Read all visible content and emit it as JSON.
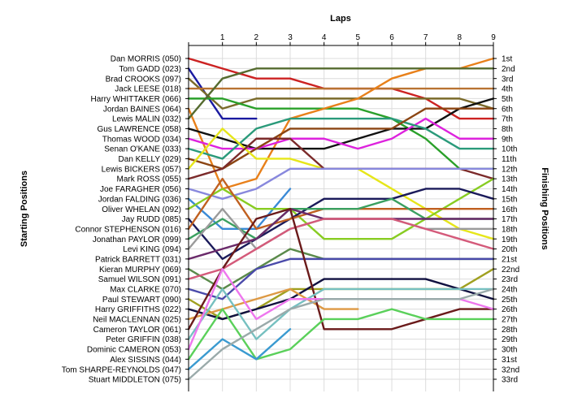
{
  "chart_data": {
    "type": "line",
    "title": "",
    "top_axis_label": "Laps",
    "left_axis_label": "Starting Positions",
    "right_axis_label": "Finishing Positions",
    "x": [
      0,
      1,
      2,
      3,
      4,
      5,
      6,
      7,
      8,
      9
    ],
    "x_tick_labels": [
      "1",
      "2",
      "3",
      "4",
      "5",
      "6",
      "7",
      "8",
      "9"
    ],
    "y_range": [
      1,
      33
    ],
    "y_inverted": true,
    "grid": true,
    "starting_labels": [
      "Dan MORRIS (050)",
      "Tom GADD (023)",
      "Brad CROOKS (097)",
      "Jack LEESE (018)",
      "Harry WHITTAKER (066)",
      "Jordan BAINES (064)",
      "Lewis MALIN (032)",
      "Gus LAWRENCE (058)",
      "Thomas WOOD (034)",
      "Senan O'KANE (033)",
      "Dan KELLY (029)",
      "Lewis BICKERS (057)",
      "Mark ROSS (055)",
      "Joe FARAGHER (056)",
      "Jordan FALDING (036)",
      "Oliver WHELAN (092)",
      "Jay RUDD (085)",
      "Connor STEPHENSON (016)",
      "Jonathan PAYLOR (099)",
      "Levi KING (094)",
      "Patrick BARRETT (031)",
      "Kieran MURPHY (069)",
      "Samuel WILSON (091)",
      "Max CLARKE (070)",
      "Paul STEWART (090)",
      "Harry GRIFFITHS (022)",
      "Neil MACLENNAN (025)",
      "Cameron TAYLOR (061)",
      "Peter GRIFFIN (038)",
      "Dominic CAMERON (053)",
      "Alex SISSINS (044)",
      "Tom SHARPE-REYNOLDS (047)",
      "Stuart MIDDLETON (075)"
    ],
    "finishing_labels": [
      "1st",
      "2nd",
      "3rd",
      "4th",
      "5th",
      "6th",
      "7th",
      "8th",
      "9th",
      "10th",
      "11th",
      "12th",
      "13th",
      "14th",
      "15th",
      "16th",
      "17th",
      "18th",
      "19th",
      "20th",
      "21st",
      "22nd",
      "23rd",
      "24th",
      "25th",
      "26th",
      "27th",
      "28th",
      "29th",
      "30th",
      "31st",
      "32nd",
      "33rd"
    ],
    "series": [
      {
        "color": "#cc2222",
        "values": [
          1,
          2,
          3,
          3,
          4,
          4,
          4,
          5,
          7,
          7
        ]
      },
      {
        "color": "#1a1aa0",
        "values": [
          2,
          7,
          7,
          null,
          null,
          null,
          null,
          null,
          null,
          null
        ]
      },
      {
        "color": "#7a6a2a",
        "values": [
          3,
          6,
          5,
          5,
          5,
          5,
          5,
          5,
          5,
          6
        ]
      },
      {
        "color": "#b87333",
        "values": [
          4,
          4,
          4,
          4,
          4,
          4,
          4,
          4,
          4,
          4
        ]
      },
      {
        "color": "#2aa02a",
        "values": [
          5,
          5,
          6,
          6,
          6,
          6,
          7,
          9,
          12,
          12
        ]
      },
      {
        "color": "#e8801a",
        "values": [
          6,
          14,
          13,
          7,
          6,
          5,
          3,
          2,
          2,
          1
        ]
      },
      {
        "color": "#556b2f",
        "values": [
          7,
          3,
          2,
          2,
          2,
          2,
          2,
          2,
          2,
          2
        ]
      },
      {
        "color": "#111111",
        "values": [
          8,
          9,
          10,
          10,
          10,
          9,
          8,
          8,
          6,
          5
        ]
      },
      {
        "color": "#dd22dd",
        "values": [
          9,
          10,
          10,
          9,
          9,
          10,
          9,
          7,
          9,
          9
        ]
      },
      {
        "color": "#2a9a7a",
        "values": [
          10,
          11,
          8,
          7,
          7,
          7,
          7,
          8,
          10,
          10
        ]
      },
      {
        "color": "#8b4513",
        "values": [
          11,
          12,
          10,
          8,
          8,
          8,
          8,
          6,
          6,
          6
        ]
      },
      {
        "color": "#e6e61a",
        "values": [
          12,
          8,
          11,
          11,
          12,
          12,
          14,
          16,
          18,
          19
        ]
      },
      {
        "color": "#7b2a2a",
        "values": [
          13,
          12,
          9,
          9,
          12,
          12,
          12,
          12,
          12,
          13
        ]
      },
      {
        "color": "#8888dd",
        "values": [
          14,
          15,
          14,
          12,
          12,
          12,
          12,
          12,
          12,
          12
        ]
      },
      {
        "color": "#3a8ad6",
        "values": [
          15,
          18,
          18,
          14,
          null,
          null,
          null,
          null,
          null,
          null
        ]
      },
      {
        "color": "#88cc22",
        "values": [
          16,
          14,
          16,
          16,
          19,
          19,
          19,
          17,
          15,
          13
        ]
      },
      {
        "color": "#1a1a5a",
        "values": [
          17,
          21,
          19,
          17,
          15,
          15,
          15,
          14,
          14,
          15
        ]
      },
      {
        "color": "#c06020",
        "values": [
          18,
          13,
          18,
          17,
          16,
          16,
          16,
          16,
          16,
          16
        ]
      },
      {
        "color": "#3aa060",
        "values": [
          19,
          17,
          19,
          16,
          16,
          16,
          15,
          17,
          17,
          17
        ]
      },
      {
        "color": "#9a9a9a",
        "values": [
          20,
          16,
          20,
          18,
          17,
          17,
          17,
          18,
          18,
          18
        ]
      },
      {
        "color": "#6a2a6a",
        "values": [
          21,
          20,
          19,
          16,
          17,
          17,
          17,
          17,
          17,
          17
        ]
      },
      {
        "color": "#5a8a4a",
        "values": [
          22,
          24,
          22,
          20,
          21,
          21,
          21,
          21,
          21,
          21
        ]
      },
      {
        "color": "#d45a7a",
        "values": [
          23,
          22,
          20,
          18,
          17,
          17,
          17,
          18,
          19,
          20
        ]
      },
      {
        "color": "#4a4aaa",
        "values": [
          24,
          25,
          22,
          21,
          21,
          21,
          21,
          21,
          21,
          21
        ]
      },
      {
        "color": "#a0a020",
        "values": [
          25,
          27,
          26,
          24,
          24,
          24,
          24,
          24,
          24,
          22
        ]
      },
      {
        "color": "#101040",
        "values": [
          26,
          27,
          26,
          25,
          23,
          23,
          23,
          23,
          24,
          25
        ]
      },
      {
        "color": "#dd9944",
        "values": [
          27,
          26,
          25,
          24,
          26,
          26,
          null,
          null,
          null,
          null
        ]
      },
      {
        "color": "#6a1a1a",
        "values": [
          28,
          22,
          17,
          16,
          28,
          28,
          28,
          27,
          26,
          26
        ]
      },
      {
        "color": "#76c0c0",
        "values": [
          29,
          24,
          29,
          26,
          24,
          24,
          24,
          24,
          24,
          24
        ]
      },
      {
        "color": "#ee77ee",
        "values": [
          30,
          22,
          27,
          25,
          25,
          25,
          25,
          25,
          25,
          26
        ]
      },
      {
        "color": "#5ad05a",
        "values": [
          31,
          26,
          31,
          30,
          27,
          27,
          26,
          27,
          27,
          27
        ]
      },
      {
        "color": "#3a9ad0",
        "values": [
          32,
          29,
          31,
          28,
          null,
          null,
          null,
          null,
          null,
          null
        ]
      },
      {
        "color": "#9aaaaa",
        "values": [
          33,
          30,
          28,
          26,
          25,
          25,
          25,
          25,
          25,
          24
        ]
      }
    ]
  }
}
